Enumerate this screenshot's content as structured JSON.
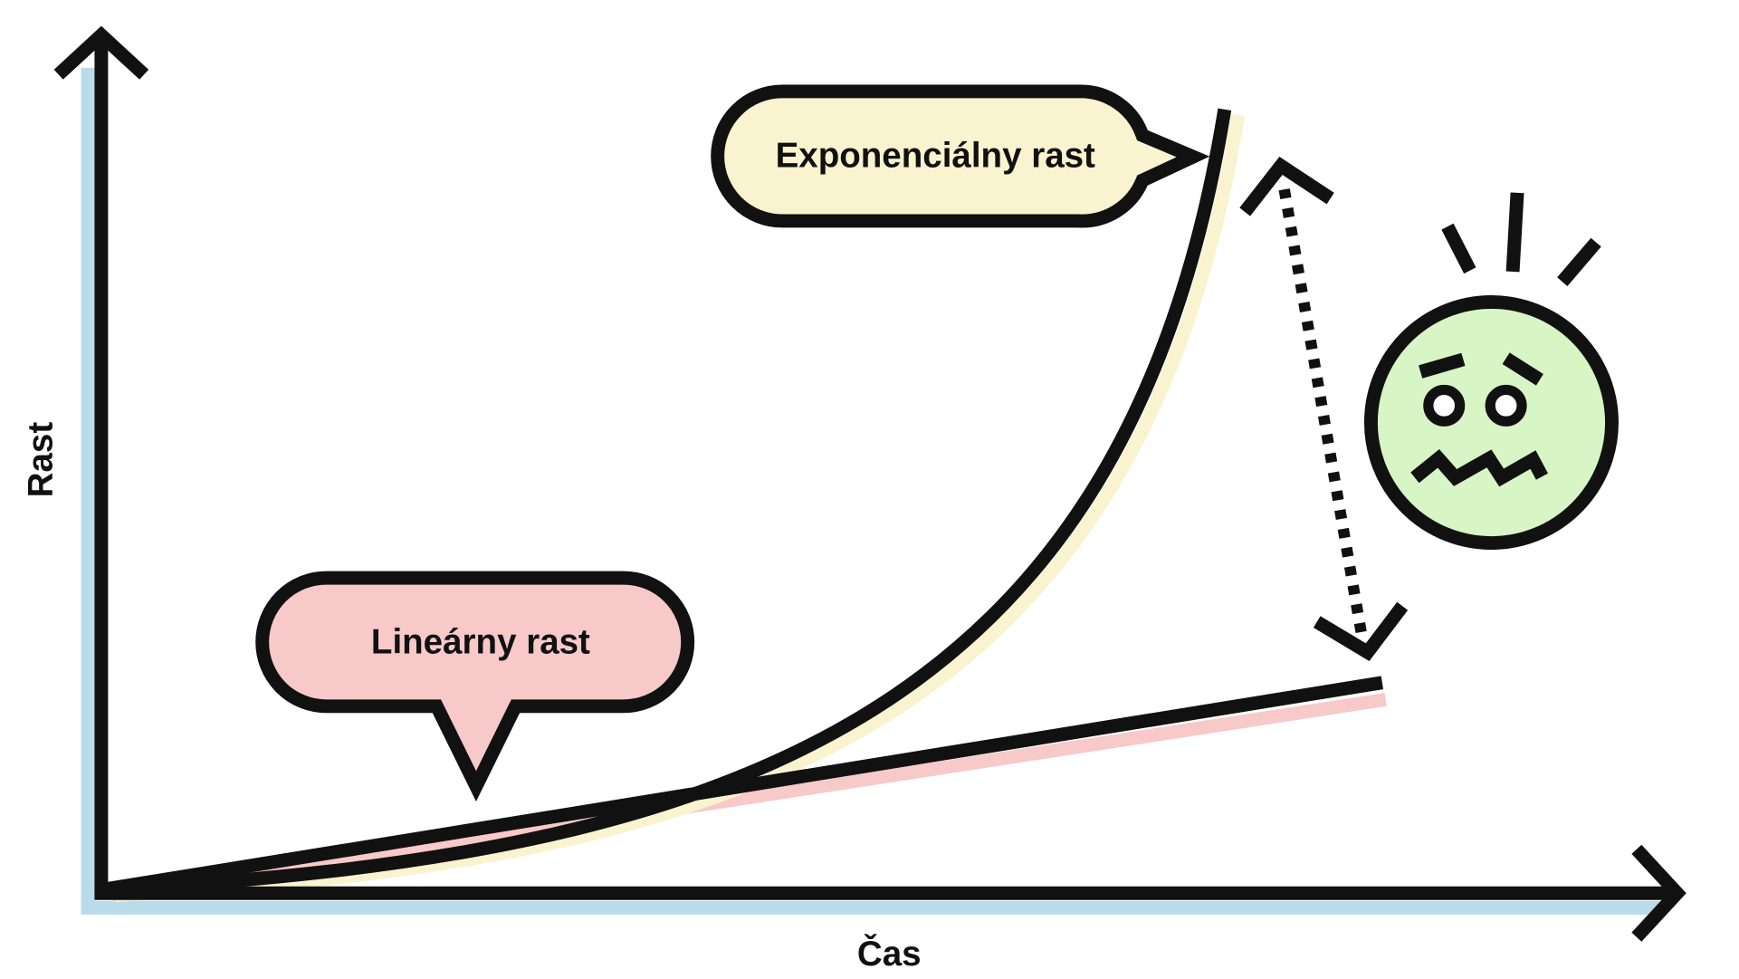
{
  "y_axis": {
    "label": "Rast"
  },
  "x_axis": {
    "label": "Čas"
  },
  "callouts": [
    {
      "label": "Exponenciálny rast"
    },
    {
      "label": "Lineárny rast"
    }
  ]
}
